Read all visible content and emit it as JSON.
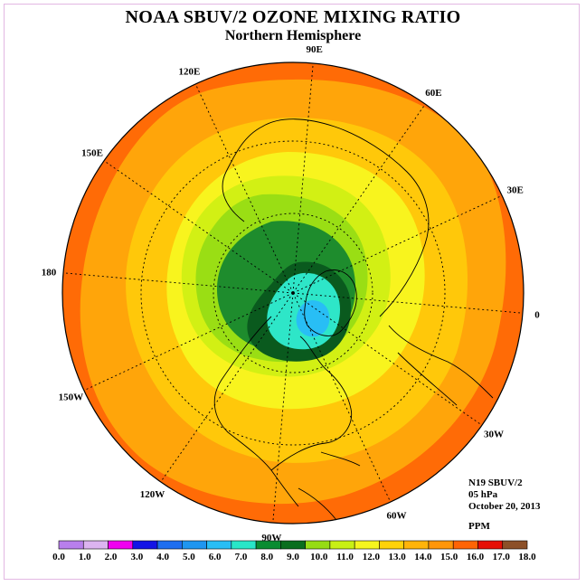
{
  "title": "NOAA SBUV/2 OZONE MIXING RATIO",
  "subtitle": "Northern Hemisphere",
  "info": {
    "satellite": "N19 SBUV/2",
    "level": "05 hPa",
    "date": "October 20, 2013",
    "units": "PPM"
  },
  "longitude_labels": [
    {
      "text": "90E",
      "angle": 90
    },
    {
      "text": "60E",
      "angle": 60
    },
    {
      "text": "30E",
      "angle": 30
    },
    {
      "text": "0",
      "angle": 0
    },
    {
      "text": "30W",
      "angle": -30
    },
    {
      "text": "60W",
      "angle": -60
    },
    {
      "text": "90W",
      "angle": -90
    },
    {
      "text": "120W",
      "angle": -120
    },
    {
      "text": "150W",
      "angle": -150
    },
    {
      "text": "180",
      "angle": 180
    },
    {
      "text": "150E",
      "angle": 150
    },
    {
      "text": "120E",
      "angle": 120
    }
  ],
  "legend": {
    "ticks": [
      "0.0",
      "1.0",
      "2.0",
      "3.0",
      "4.0",
      "5.0",
      "6.0",
      "7.0",
      "8.0",
      "9.0",
      "10.0",
      "11.0",
      "12.0",
      "13.0",
      "14.0",
      "15.0",
      "16.0",
      "17.0",
      "18.0"
    ],
    "colors": [
      "#b87fec",
      "#dcb4f0",
      "#f000f0",
      "#1414e6",
      "#1e6ef0",
      "#1e96f0",
      "#28bef5",
      "#28e6c8",
      "#0a8c32",
      "#0a6e1e",
      "#96dc14",
      "#c8f014",
      "#f5f51e",
      "#ffd20a",
      "#ffb40a",
      "#ff960a",
      "#ff6405",
      "#e60f05",
      "#8c5028"
    ]
  },
  "map_fill_colors": {
    "outer": "#ff6b06",
    "band_15": "#ffa50a",
    "band_14": "#ffc80a",
    "band_13": "#f8f41e",
    "band_12": "#d2f014",
    "band_11": "#9ade14",
    "band_10": "#1e8c2d",
    "band_9": "#0a5a1e",
    "band_8": "#2ee6c8",
    "band_7": "#28bef5"
  }
}
